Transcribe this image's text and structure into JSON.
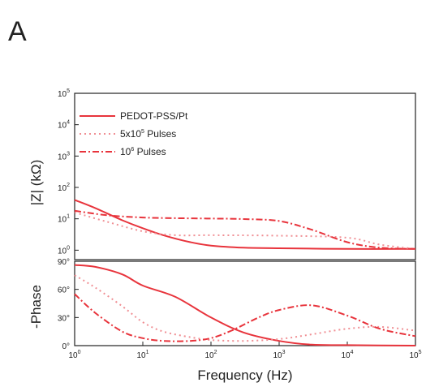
{
  "panel_label": "A",
  "colors": {
    "series": "#e8343c",
    "axis": "#222222"
  },
  "chart_data": [
    {
      "type": "line",
      "panel": "top",
      "ylabel": "|Z| (kΩ)",
      "xscale": "log",
      "yscale": "log",
      "xlim": [
        1,
        100000
      ],
      "ylim": [
        0.5,
        100000
      ],
      "legend": "top-left",
      "legend_entries": [
        {
          "label": "PEDOT-PSS/Pt",
          "style": "solid"
        },
        {
          "label_base": "5x10",
          "label_exp": "5",
          "label_rest": " Pulses",
          "style": "dotted"
        },
        {
          "label_base": "10",
          "label_exp": "6",
          "label_rest": " Pulses",
          "style": "dash-dot"
        }
      ],
      "yticks": [
        {
          "base": "10",
          "exp": "0"
        },
        {
          "base": "10",
          "exp": "1"
        },
        {
          "base": "10",
          "exp": "2"
        },
        {
          "base": "10",
          "exp": "3"
        },
        {
          "base": "10",
          "exp": "4"
        },
        {
          "base": "10",
          "exp": "5"
        }
      ],
      "series": [
        {
          "name": "PEDOT-PSS/Pt",
          "style": "solid",
          "x": [
            1,
            2,
            5,
            10,
            20,
            50,
            100,
            300,
            1000,
            10000,
            100000
          ],
          "y": [
            40,
            22,
            9,
            5,
            3,
            1.8,
            1.4,
            1.2,
            1.15,
            1.1,
            1.1
          ]
        },
        {
          "name": "5x10^5 Pulses",
          "style": "dotted",
          "x": [
            1,
            3,
            10,
            30,
            100,
            1000,
            10000,
            30000,
            100000
          ],
          "y": [
            16,
            8,
            4,
            3,
            3,
            2.9,
            2.5,
            1.5,
            1.1
          ]
        },
        {
          "name": "10^6 Pulses",
          "style": "dash-dot",
          "x": [
            1,
            3,
            10,
            30,
            100,
            300,
            1000,
            3000,
            10000,
            30000,
            100000
          ],
          "y": [
            18,
            13,
            11,
            10.5,
            10.2,
            9.8,
            8.5,
            4.5,
            1.8,
            1.2,
            1.1
          ]
        }
      ]
    },
    {
      "type": "line",
      "panel": "bottom",
      "xlabel": "Frequency (Hz)",
      "ylabel": "-Phase",
      "xscale": "log",
      "xlim": [
        1,
        100000
      ],
      "ylim": [
        0,
        90
      ],
      "yticks": [
        "0°",
        "30°",
        "60°",
        "90°"
      ],
      "xticks": [
        {
          "base": "10",
          "exp": "0"
        },
        {
          "base": "10",
          "exp": "1"
        },
        {
          "base": "10",
          "exp": "2"
        },
        {
          "base": "10",
          "exp": "3"
        },
        {
          "base": "10",
          "exp": "4"
        },
        {
          "base": "10",
          "exp": "5"
        }
      ],
      "series": [
        {
          "name": "PEDOT-PSS/Pt",
          "style": "solid",
          "x": [
            1,
            2,
            5,
            10,
            30,
            100,
            300,
            1000,
            3000,
            10000,
            100000
          ],
          "y": [
            86,
            84,
            76,
            64,
            52,
            30,
            14,
            5,
            1,
            0.5,
            0
          ]
        },
        {
          "name": "5x10^5 Pulses",
          "style": "dotted",
          "x": [
            1,
            2,
            5,
            10,
            20,
            50,
            100,
            300,
            1000,
            3000,
            10000,
            30000,
            100000
          ],
          "y": [
            75,
            62,
            42,
            25,
            15,
            9,
            6,
            5,
            7,
            12,
            18,
            20,
            16
          ]
        },
        {
          "name": "10^6 Pulses",
          "style": "dash-dot",
          "x": [
            1,
            2,
            5,
            10,
            20,
            50,
            100,
            200,
            500,
            1000,
            3000,
            10000,
            30000,
            100000
          ],
          "y": [
            55,
            35,
            15,
            8,
            5,
            5,
            8,
            16,
            30,
            38,
            43,
            32,
            18,
            10
          ]
        }
      ]
    }
  ]
}
